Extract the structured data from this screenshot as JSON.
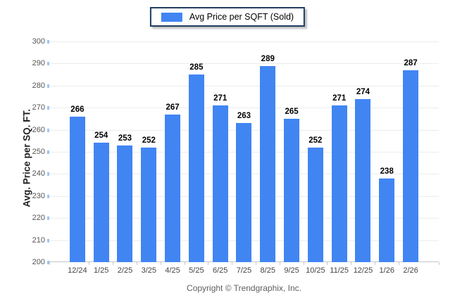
{
  "legend": {
    "label": "Avg Price per SQFT (Sold)"
  },
  "footer": {
    "text": "Copyright © Trendgraphix, Inc."
  },
  "chart_data": {
    "type": "bar",
    "title": "",
    "series_name": "Avg Price per SQFT (Sold)",
    "categories": [
      "12/24",
      "1/25",
      "2/25",
      "3/25",
      "4/25",
      "5/25",
      "6/25",
      "7/25",
      "8/25",
      "9/25",
      "10/25",
      "11/25",
      "12/25",
      "1/26",
      "2/26"
    ],
    "values": [
      266,
      254,
      253,
      252,
      267,
      285,
      271,
      263,
      289,
      265,
      252,
      271,
      274,
      238,
      287
    ],
    "xlabel": "",
    "ylabel": "Avg. Price per SQ. FT.",
    "ylim": [
      200,
      300
    ],
    "ytick_step": 10,
    "grid": true,
    "legend_position": "top-center",
    "value_labels": true,
    "bar_color": "#4185f3",
    "gridline_color": "#ececec",
    "axis_line_color": "#c6c6c6",
    "ytick_color": "#9cc6f2"
  }
}
